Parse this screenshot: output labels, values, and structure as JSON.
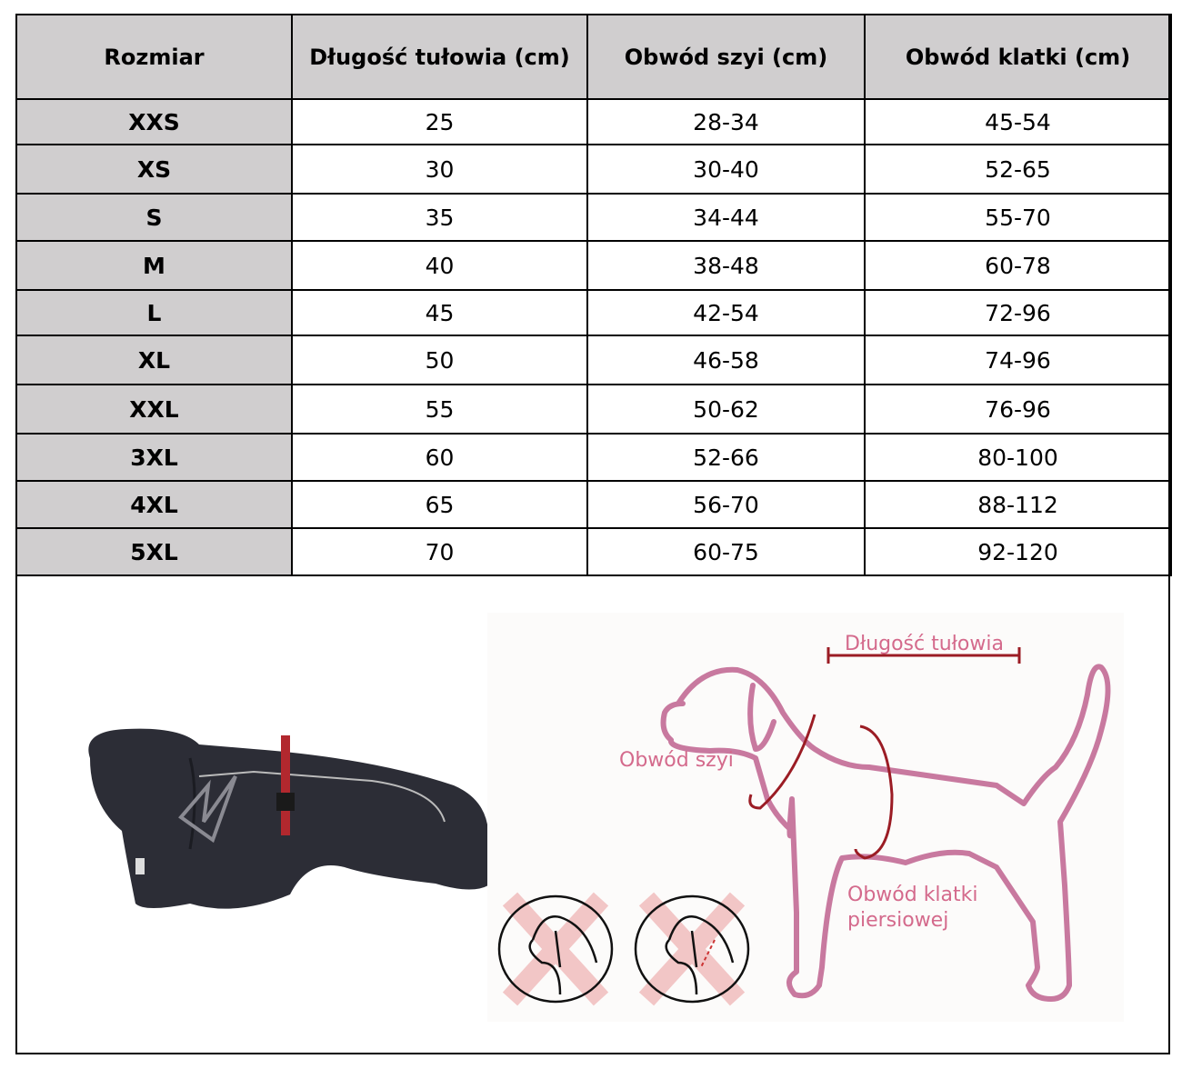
{
  "table": {
    "headers": [
      "Rozmiar",
      "Długość tułowia (cm)",
      "Obwód szyi (cm)",
      "Obwód klatki (cm)"
    ],
    "rows": [
      [
        "XXS",
        "25",
        "28-34",
        "45-54"
      ],
      [
        "XS",
        "30",
        "30-40",
        "52-65"
      ],
      [
        "S",
        "35",
        "34-44",
        "55-70"
      ],
      [
        "M",
        "40",
        "38-48",
        "60-78"
      ],
      [
        "L",
        "45",
        "42-54",
        "72-96"
      ],
      [
        "XL",
        "50",
        "46-58",
        "74-96"
      ],
      [
        "XXL",
        "55",
        "50-62",
        "76-96"
      ],
      [
        "3XL",
        "60",
        "52-66",
        "80-100"
      ],
      [
        "4XL",
        "65",
        "56-70",
        "88-112"
      ],
      [
        "5XL",
        "70",
        "60-75",
        "92-120"
      ]
    ]
  },
  "diagram": {
    "length_label": "Długość tułowia",
    "neck_label": "Obwód szyi",
    "chest_label_line1": "Obwód klatki",
    "chest_label_line2": "piersiowej",
    "outline_color": "#c8799f",
    "measure_color": "#9b1c24",
    "label_color": "#d46a8c"
  }
}
